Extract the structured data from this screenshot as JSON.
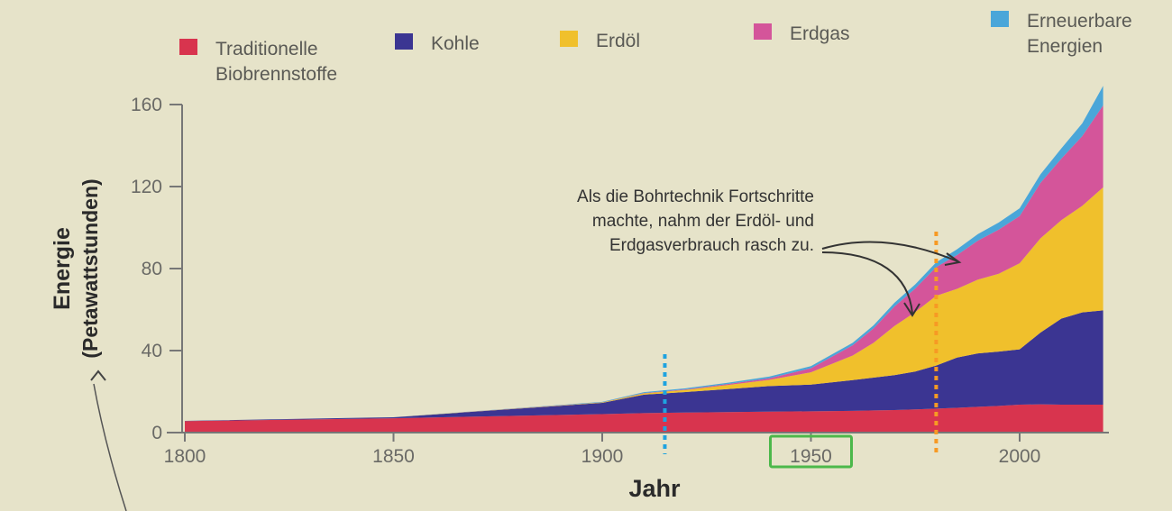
{
  "chart_data": {
    "type": "area",
    "stacked": true,
    "xlabel": "Jahr",
    "ylabel": "Energie",
    "ylabel_unit": "(Petawattstunden)",
    "xlim": [
      1800,
      2020
    ],
    "ylim": [
      0,
      160
    ],
    "x_ticks": [
      1800,
      1850,
      1900,
      1950,
      2000
    ],
    "y_ticks": [
      0,
      40,
      80,
      120,
      160
    ],
    "legend_position": "top",
    "x": [
      1800,
      1850,
      1900,
      1910,
      1920,
      1930,
      1940,
      1950,
      1960,
      1965,
      1970,
      1975,
      1980,
      1985,
      1990,
      1995,
      2000,
      2005,
      2010,
      2015,
      2020
    ],
    "series": [
      {
        "name": "Traditionelle Biobrennstoffe",
        "color": "#d8344e",
        "values": [
          5.6,
          7.0,
          9.0,
          9.5,
          9.8,
          10.0,
          10.2,
          10.4,
          10.6,
          10.8,
          11.0,
          11.3,
          11.7,
          12.1,
          12.6,
          13.0,
          13.6,
          13.8,
          13.6,
          13.6,
          13.6
        ]
      },
      {
        "name": "Kohle",
        "color": "#3b3592",
        "values": [
          0.1,
          0.5,
          5.5,
          9.0,
          10.0,
          11.2,
          12.5,
          13.0,
          15.0,
          16.0,
          17.0,
          18.5,
          21.0,
          24.5,
          26.0,
          26.5,
          27.0,
          35.0,
          42.0,
          45.0,
          46.0
        ]
      },
      {
        "name": "Erdöl",
        "color": "#f0c02c",
        "values": [
          0,
          0,
          0.2,
          0.6,
          1.0,
          2.0,
          3.0,
          6.0,
          12.0,
          17.0,
          24.0,
          29.0,
          34.0,
          33.5,
          36.0,
          38.0,
          42.0,
          46.0,
          48.0,
          52.0,
          60.0
        ]
      },
      {
        "name": "Erdgas",
        "color": "#d4559a",
        "values": [
          0,
          0,
          0.1,
          0.2,
          0.3,
          0.5,
          0.8,
          2.0,
          5.0,
          7.0,
          9.5,
          11.5,
          14.0,
          16.5,
          19.0,
          21.5,
          23.0,
          27.0,
          30.0,
          34.0,
          40.0
        ]
      },
      {
        "name": "Erneuerbare Energien",
        "color": "#4aa6d9",
        "values": [
          0,
          0,
          0.2,
          0.4,
          0.5,
          0.6,
          0.8,
          1.0,
          1.2,
          1.5,
          1.8,
          2.0,
          2.3,
          2.8,
          3.2,
          3.5,
          3.8,
          4.2,
          5.0,
          6.2,
          9.5
        ]
      }
    ],
    "annotations": [
      {
        "text_lines": [
          "Als die Bohrtechnik Fortschritte",
          "machte, nahm der Erdöl- und",
          "Erdgasverbrauch rasch zu."
        ]
      }
    ],
    "markers": [
      {
        "type": "vertical-dotted-line",
        "x": 1915,
        "color": "#1ea3e0"
      },
      {
        "type": "vertical-dotted-line",
        "x": 1980,
        "color": "#f79a24"
      },
      {
        "type": "highlight-box",
        "target_tick": 1950,
        "color": "#4cb84a"
      }
    ]
  },
  "legend": [
    {
      "color": "#d8344e",
      "lines": [
        "Traditionelle",
        "Biobrennstoffe"
      ]
    },
    {
      "color": "#3b3592",
      "lines": [
        "Kohle"
      ]
    },
    {
      "color": "#f0c02c",
      "lines": [
        "Erdöl"
      ]
    },
    {
      "color": "#d4559a",
      "lines": [
        "Erdgas"
      ]
    },
    {
      "color": "#4aa6d9",
      "lines": [
        "Erneuerbare",
        "Energien"
      ]
    }
  ]
}
